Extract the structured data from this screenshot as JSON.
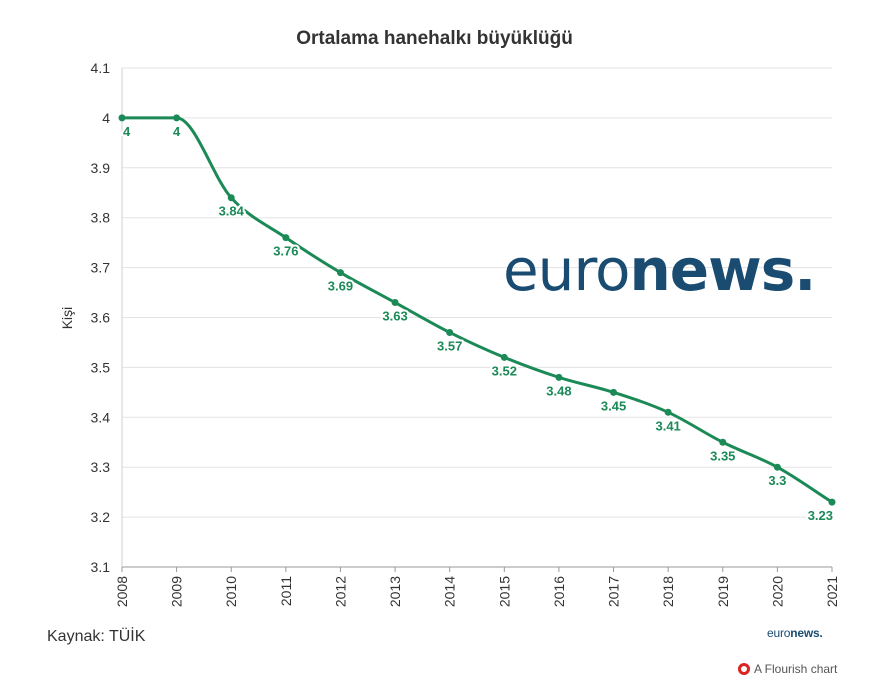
{
  "chart_data": {
    "type": "line",
    "title": "Ortalama hanehalkı büyüklüğü",
    "xlabel": "",
    "ylabel": "Kişi",
    "x": [
      "2008",
      "2009",
      "2010",
      "2011",
      "2012",
      "2013",
      "2014",
      "2015",
      "2016",
      "2017",
      "2018",
      "2019",
      "2020",
      "2021"
    ],
    "series": [
      {
        "name": "",
        "values": [
          4,
          4,
          3.84,
          3.76,
          3.69,
          3.63,
          3.57,
          3.52,
          3.48,
          3.45,
          3.41,
          3.35,
          3.3,
          3.23
        ],
        "labels": [
          "4",
          "4",
          "3.84",
          "3.76",
          "3.69",
          "3.63",
          "3.57",
          "3.52",
          "3.48",
          "3.45",
          "3.41",
          "3.35",
          "3.3",
          "3.23"
        ]
      }
    ],
    "ylim": [
      3.1,
      4.1
    ],
    "yticks": [
      "3.1",
      "3.2",
      "3.3",
      "3.4",
      "3.5",
      "3.6",
      "3.7",
      "3.8",
      "3.9",
      "4",
      "4.1"
    ],
    "grid": true,
    "line_color": "#1b8a57"
  },
  "source": "Kaynak: TÜİK",
  "watermark": {
    "light": "euro",
    "bold": "news."
  },
  "brand_small": {
    "light": "euro",
    "bold": "news."
  },
  "credit": "A Flourish chart",
  "colors": {
    "brand": "#1a4c72",
    "series": "#1b8a57"
  }
}
